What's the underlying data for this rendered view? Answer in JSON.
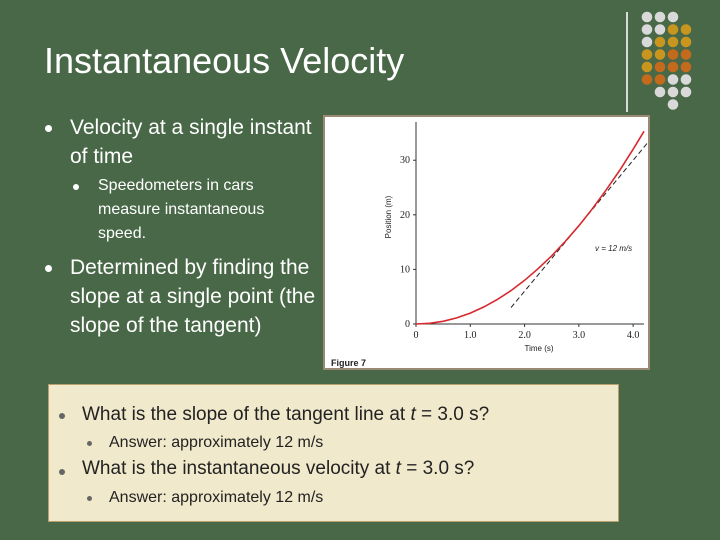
{
  "slide": {
    "title": "Instantaneous Velocity",
    "bullets": [
      {
        "text": "Velocity at a single instant of time",
        "sub": [
          "Speedometers in cars measure instantaneous speed."
        ]
      },
      {
        "text": "Determined by finding the slope at a single point (the slope of the tangent)",
        "sub": []
      }
    ]
  },
  "questions": [
    {
      "q_prefix": "What is the slope of the tangent line at ",
      "q_var": "t",
      "q_suffix": " = 3.0 s?",
      "answer": "Answer: approximately 12 m/s"
    },
    {
      "q_prefix": "What is the instantaneous velocity at ",
      "q_var": "t",
      "q_suffix": " = 3.0 s?",
      "answer": "Answer: approximately 12 m/s"
    }
  ],
  "colors": {
    "background": "#496848",
    "curve": "#d8282f",
    "dots_gray": "#d9d9d9",
    "dots_gold": "#c8961e",
    "dots_orange": "#c46a1c"
  },
  "chart_data": {
    "type": "line",
    "caption": "Figure 7",
    "xlabel": "Time (s)",
    "ylabel": "Position (m)",
    "xlim": [
      0,
      4.2
    ],
    "ylim": [
      0,
      37
    ],
    "xticks": [
      "0",
      "1.0",
      "2.0",
      "3.0",
      "4.0"
    ],
    "xtick_values": [
      0,
      1,
      2,
      3,
      4
    ],
    "yticks": [
      "0",
      "10",
      "20",
      "30"
    ],
    "ytick_values": [
      0,
      10,
      20,
      30
    ],
    "grid": false,
    "series": [
      {
        "style": "solid",
        "x": [
          0,
          0.25,
          0.5,
          0.75,
          1.0,
          1.25,
          1.5,
          1.75,
          2.0,
          2.25,
          2.5,
          2.75,
          3.0,
          3.25,
          3.5,
          3.75,
          4.0,
          4.2
        ],
        "y": [
          0,
          0.125,
          0.5,
          1.125,
          2.0,
          3.125,
          4.5,
          6.125,
          8.0,
          10.125,
          12.5,
          15.125,
          18.0,
          21.125,
          24.5,
          28.125,
          32.0,
          35.3
        ]
      },
      {
        "style": "dashed",
        "x": [
          1.75,
          4.4
        ],
        "y": [
          3.0,
          34.8
        ]
      }
    ],
    "annotation": "v = 12 m/s"
  }
}
